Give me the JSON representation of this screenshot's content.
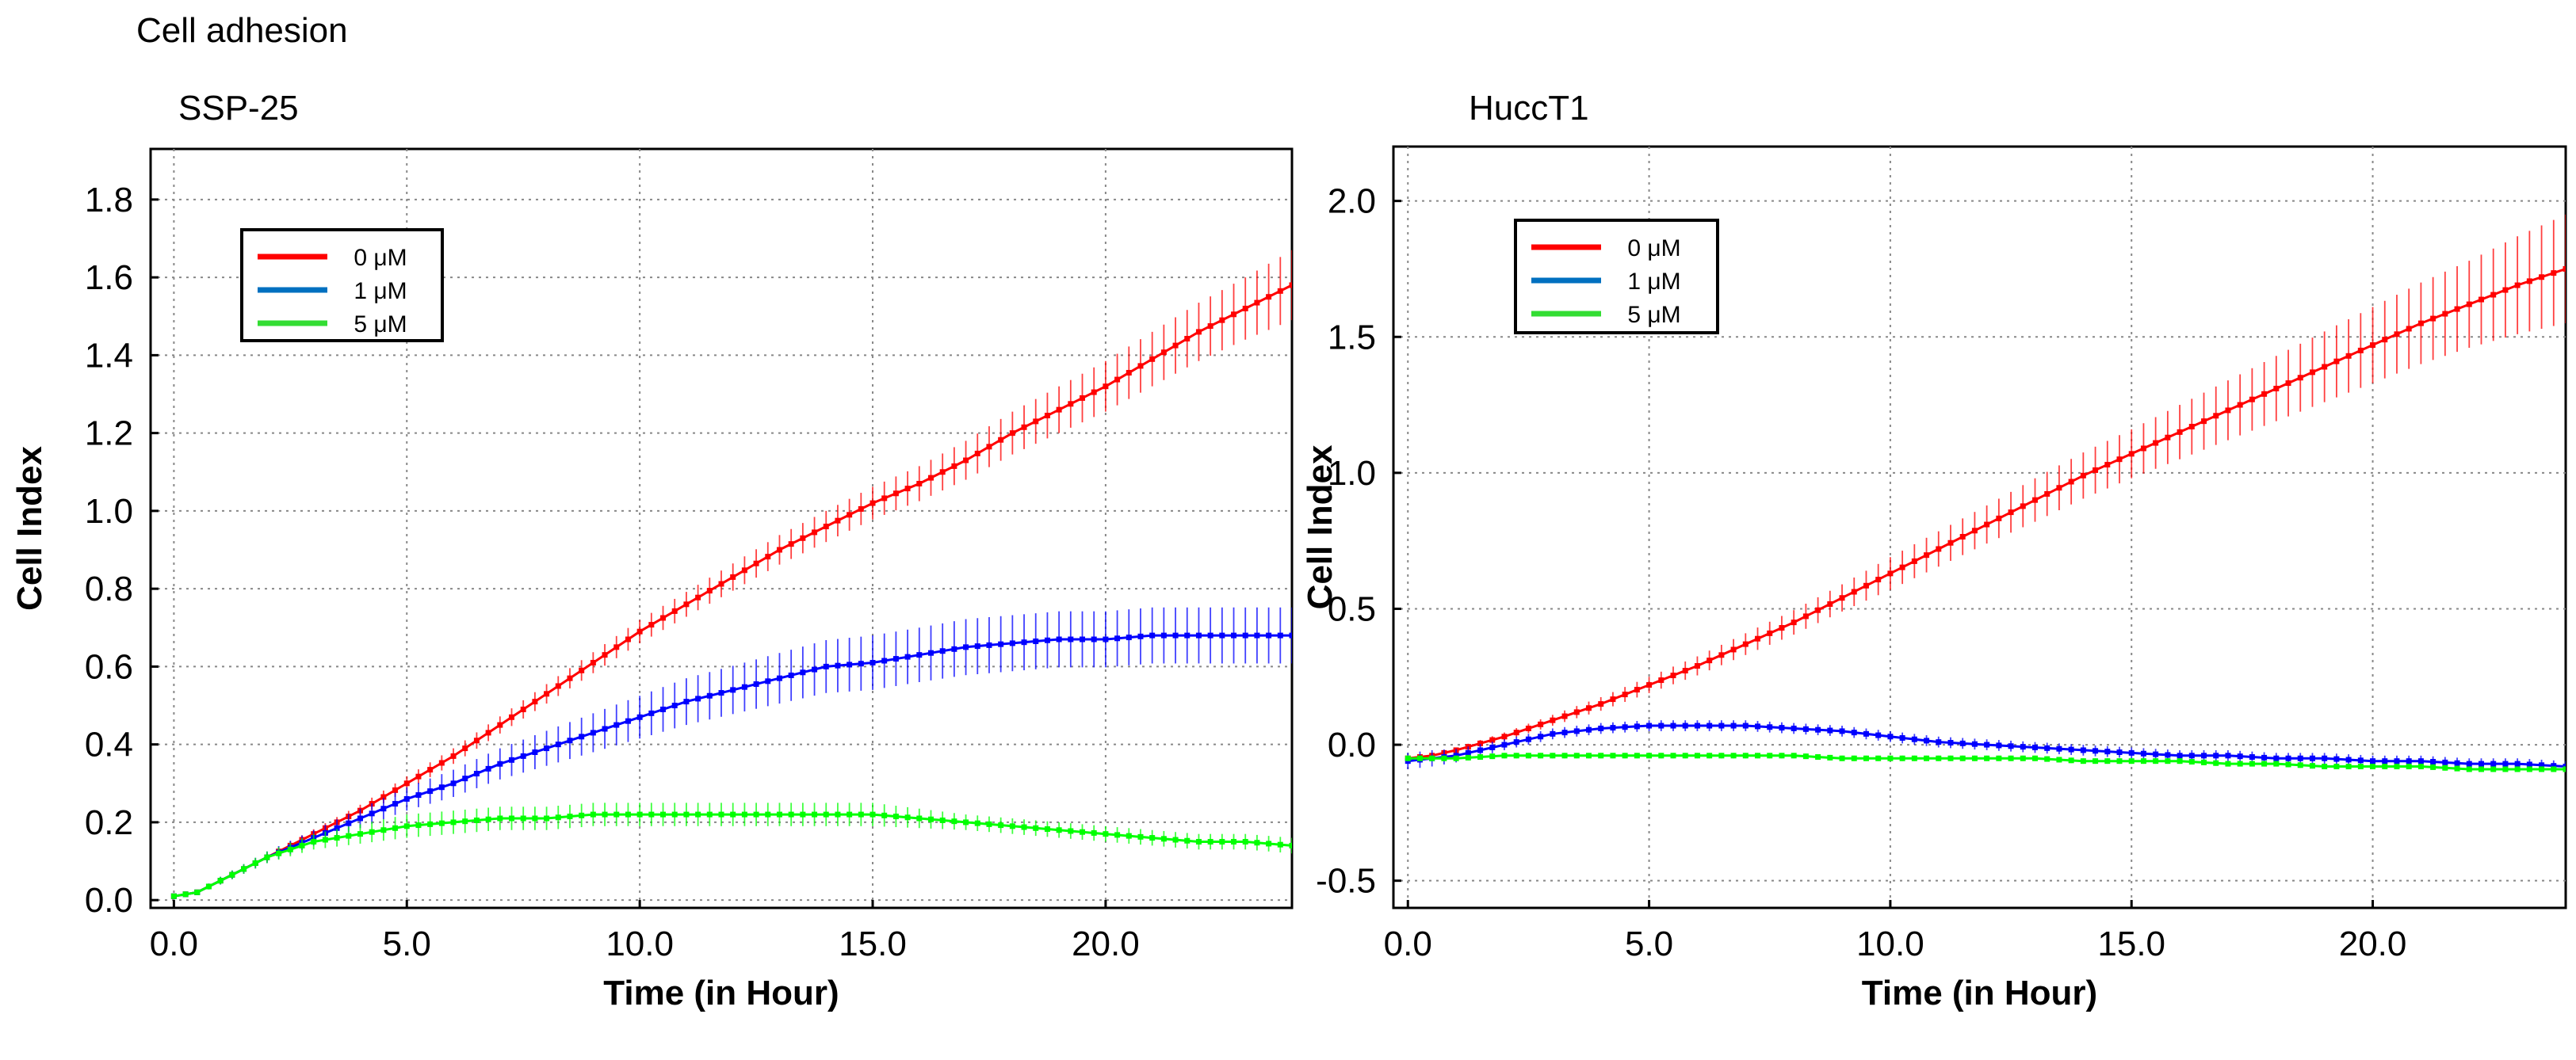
{
  "title": "Cell adhesion",
  "chart_data": [
    {
      "type": "line",
      "title": "SSP-25",
      "xlabel": "Time (in Hour)",
      "ylabel": "Cell Index",
      "xlim": [
        -0.5,
        24.0
      ],
      "ylim": [
        -0.02,
        1.93
      ],
      "xticks": [
        0,
        5,
        10,
        15,
        20
      ],
      "xtick_labels": [
        "0.0",
        "5.0",
        "10.0",
        "15.0",
        "20.0"
      ],
      "yticks": [
        0,
        0.2,
        0.4,
        0.6,
        0.8,
        1.0,
        1.2,
        1.4,
        1.6,
        1.8
      ],
      "ytick_labels": [
        "0.0",
        "0.2",
        "0.4",
        "0.6",
        "0.8",
        "1.0",
        "1.2",
        "1.4",
        "1.6",
        "1.8"
      ],
      "grid": true,
      "legend_position": "top-left",
      "series": [
        {
          "name": "0 μM",
          "color": "#ff0000",
          "x": [
            0,
            0.5,
            1,
            2,
            3,
            4,
            5,
            6,
            7,
            8,
            9,
            10,
            11,
            12,
            13,
            14,
            15,
            16,
            17,
            18,
            19,
            20,
            21,
            22,
            23,
            24
          ],
          "y": [
            0.01,
            0.02,
            0.05,
            0.11,
            0.17,
            0.23,
            0.3,
            0.37,
            0.45,
            0.53,
            0.61,
            0.69,
            0.76,
            0.83,
            0.9,
            0.96,
            1.02,
            1.07,
            1.13,
            1.2,
            1.26,
            1.32,
            1.39,
            1.46,
            1.52,
            1.58
          ],
          "err": [
            0.005,
            0.005,
            0.008,
            0.01,
            0.012,
            0.015,
            0.018,
            0.02,
            0.022,
            0.025,
            0.027,
            0.03,
            0.032,
            0.035,
            0.038,
            0.04,
            0.042,
            0.045,
            0.05,
            0.055,
            0.06,
            0.065,
            0.07,
            0.075,
            0.08,
            0.09
          ]
        },
        {
          "name": "1 μM",
          "color": "#0000ff",
          "legend_color": "#0070c0",
          "x": [
            0,
            0.5,
            1,
            2,
            3,
            4,
            5,
            6,
            7,
            8,
            9,
            10,
            11,
            12,
            13,
            14,
            15,
            16,
            17,
            18,
            19,
            20,
            21,
            22,
            23,
            24
          ],
          "y": [
            0.01,
            0.02,
            0.05,
            0.11,
            0.16,
            0.21,
            0.26,
            0.3,
            0.35,
            0.39,
            0.43,
            0.47,
            0.51,
            0.54,
            0.57,
            0.6,
            0.61,
            0.63,
            0.65,
            0.66,
            0.67,
            0.67,
            0.68,
            0.68,
            0.68,
            0.68
          ],
          "err": [
            0.005,
            0.005,
            0.01,
            0.015,
            0.02,
            0.025,
            0.03,
            0.035,
            0.04,
            0.045,
            0.05,
            0.055,
            0.06,
            0.062,
            0.065,
            0.068,
            0.07,
            0.07,
            0.072,
            0.072,
            0.072,
            0.072,
            0.072,
            0.072,
            0.072,
            0.072
          ]
        },
        {
          "name": "5 μM",
          "color": "#00ff00",
          "legend_color": "#33dd33",
          "x": [
            0,
            0.5,
            1,
            2,
            3,
            4,
            5,
            6,
            7,
            8,
            9,
            10,
            11,
            12,
            13,
            14,
            15,
            16,
            17,
            18,
            19,
            20,
            21,
            22,
            23,
            24
          ],
          "y": [
            0.01,
            0.02,
            0.05,
            0.11,
            0.15,
            0.17,
            0.19,
            0.2,
            0.21,
            0.21,
            0.22,
            0.22,
            0.22,
            0.22,
            0.22,
            0.22,
            0.22,
            0.21,
            0.2,
            0.19,
            0.18,
            0.17,
            0.16,
            0.15,
            0.15,
            0.14
          ],
          "err": [
            0.005,
            0.005,
            0.01,
            0.015,
            0.02,
            0.025,
            0.03,
            0.03,
            0.03,
            0.03,
            0.03,
            0.03,
            0.03,
            0.03,
            0.03,
            0.03,
            0.03,
            0.025,
            0.02,
            0.02,
            0.02,
            0.02,
            0.02,
            0.02,
            0.02,
            0.02
          ]
        }
      ]
    },
    {
      "type": "line",
      "title": "HuccT1",
      "xlabel": "Time (in Hour)",
      "ylabel": "Cell Index",
      "xlim": [
        -0.3,
        24.0
      ],
      "ylim": [
        -0.6,
        2.2
      ],
      "xticks": [
        0,
        5,
        10,
        15,
        20
      ],
      "xtick_labels": [
        "0.0",
        "5.0",
        "10.0",
        "15.0",
        "20.0"
      ],
      "yticks": [
        -0.5,
        0,
        0.5,
        1.0,
        1.5,
        2.0
      ],
      "ytick_labels": [
        "-0.5",
        "0.0",
        "0.5",
        "1.0",
        "1.5",
        "2.0"
      ],
      "grid": true,
      "legend_position": "top-left",
      "series": [
        {
          "name": "0 μM",
          "color": "#ff0000",
          "x": [
            0,
            0.5,
            1,
            2,
            3,
            4,
            5,
            6,
            7,
            8,
            9,
            10,
            11,
            12,
            13,
            14,
            15,
            16,
            17,
            18,
            19,
            20,
            21,
            22,
            23,
            24
          ],
          "y": [
            -0.05,
            -0.04,
            -0.02,
            0.03,
            0.09,
            0.15,
            0.22,
            0.29,
            0.37,
            0.45,
            0.54,
            0.63,
            0.72,
            0.81,
            0.9,
            0.99,
            1.07,
            1.15,
            1.23,
            1.31,
            1.39,
            1.47,
            1.55,
            1.62,
            1.69,
            1.75
          ],
          "err": [
            0.01,
            0.01,
            0.01,
            0.015,
            0.02,
            0.025,
            0.03,
            0.035,
            0.04,
            0.045,
            0.05,
            0.06,
            0.065,
            0.07,
            0.08,
            0.085,
            0.09,
            0.1,
            0.11,
            0.12,
            0.13,
            0.14,
            0.15,
            0.16,
            0.18,
            0.2
          ]
        },
        {
          "name": "1 μM",
          "color": "#0000ff",
          "legend_color": "#0070c0",
          "x": [
            0,
            0.5,
            1,
            2,
            3,
            4,
            5,
            6,
            7,
            8,
            9,
            10,
            11,
            12,
            13,
            14,
            15,
            16,
            17,
            18,
            19,
            20,
            21,
            22,
            23,
            24
          ],
          "y": [
            -0.06,
            -0.05,
            -0.04,
            0.0,
            0.04,
            0.06,
            0.07,
            0.07,
            0.07,
            0.06,
            0.05,
            0.03,
            0.01,
            0.0,
            -0.01,
            -0.02,
            -0.03,
            -0.04,
            -0.04,
            -0.05,
            -0.05,
            -0.06,
            -0.06,
            -0.07,
            -0.07,
            -0.08
          ],
          "err": [
            0.03,
            0.03,
            0.025,
            0.02,
            0.02,
            0.02,
            0.02,
            0.02,
            0.02,
            0.02,
            0.02,
            0.02,
            0.02,
            0.02,
            0.02,
            0.02,
            0.02,
            0.02,
            0.02,
            0.02,
            0.02,
            0.02,
            0.02,
            0.02,
            0.02,
            0.02
          ]
        },
        {
          "name": "5 μM",
          "color": "#00ff00",
          "legend_color": "#33dd33",
          "x": [
            0,
            0.5,
            1,
            2,
            3,
            4,
            5,
            6,
            7,
            8,
            9,
            10,
            11,
            12,
            13,
            14,
            15,
            16,
            17,
            18,
            19,
            20,
            21,
            22,
            23,
            24
          ],
          "y": [
            -0.05,
            -0.05,
            -0.05,
            -0.04,
            -0.04,
            -0.04,
            -0.04,
            -0.04,
            -0.04,
            -0.04,
            -0.05,
            -0.05,
            -0.05,
            -0.05,
            -0.05,
            -0.06,
            -0.06,
            -0.06,
            -0.07,
            -0.07,
            -0.08,
            -0.08,
            -0.08,
            -0.09,
            -0.09,
            -0.09
          ],
          "err": [
            0.01,
            0.01,
            0.01,
            0.01,
            0.01,
            0.01,
            0.01,
            0.01,
            0.01,
            0.01,
            0.01,
            0.01,
            0.01,
            0.01,
            0.01,
            0.01,
            0.01,
            0.01,
            0.01,
            0.01,
            0.01,
            0.01,
            0.01,
            0.01,
            0.01,
            0.01
          ]
        }
      ]
    }
  ]
}
